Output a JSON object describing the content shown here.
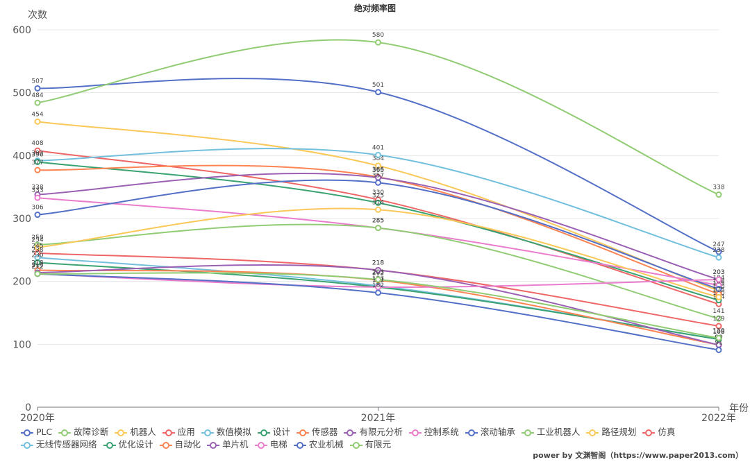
{
  "chart_data": {
    "type": "line",
    "title": "绝对频率图",
    "ylabel": "次数",
    "xlabel": "年份",
    "categories": [
      "2020年",
      "2021年",
      "2022年"
    ],
    "ylim": [
      0,
      600
    ],
    "yticks": [
      0,
      100,
      200,
      300,
      400,
      500,
      600
    ],
    "smooth": true,
    "legend_position": "bottom",
    "series": [
      {
        "name": "PLC",
        "color": "#5470c6",
        "values": [
          507,
          501,
          247
        ]
      },
      {
        "name": "故障诊断",
        "color": "#91cc75",
        "values": [
          484,
          580,
          338
        ]
      },
      {
        "name": "机器人",
        "color": "#fac858",
        "values": [
          454,
          384,
          185
        ]
      },
      {
        "name": "应用",
        "color": "#ee6666",
        "values": [
          408,
          330,
          164
        ]
      },
      {
        "name": "数值模拟",
        "color": "#73c0de",
        "values": [
          392,
          401,
          238
        ]
      },
      {
        "name": "设计",
        "color": "#3ba272",
        "values": [
          390,
          325,
          170
        ]
      },
      {
        "name": "传感器",
        "color": "#fc8452",
        "values": [
          377,
          366,
          180
        ]
      },
      {
        "name": "有限元分析",
        "color": "#9a60b4",
        "values": [
          338,
          365,
          203
        ]
      },
      {
        "name": "控制系统",
        "color": "#ea7ccc",
        "values": [
          333,
          285,
          194
        ]
      },
      {
        "name": "滚动轴承",
        "color": "#5470c6",
        "values": [
          306,
          357,
          188
        ]
      },
      {
        "name": "工业机器人",
        "color": "#91cc75",
        "values": [
          258,
          285,
          141
        ]
      },
      {
        "name": "路径规划",
        "color": "#fac858",
        "values": [
          254,
          314,
          175
        ]
      },
      {
        "name": "仿真",
        "color": "#ee6666",
        "values": [
          245,
          218,
          129
        ]
      },
      {
        "name": "无线传感器网络",
        "color": "#73c0de",
        "values": [
          238,
          193,
          108
        ]
      },
      {
        "name": "优化设计",
        "color": "#3ba272",
        "values": [
          230,
          191,
          108
        ]
      },
      {
        "name": "自动化",
        "color": "#fc8452",
        "values": [
          218,
          202,
          99
        ]
      },
      {
        "name": "单片机",
        "color": "#9a60b4",
        "values": [
          214,
          218,
          99
        ]
      },
      {
        "name": "电梯",
        "color": "#ea7ccc",
        "values": [
          212,
          191,
          203
        ]
      },
      {
        "name": "农业机械",
        "color": "#5470c6",
        "values": [
          212,
          182,
          91
        ]
      },
      {
        "name": "有限元",
        "color": "#91cc75",
        "values": [
          212,
          203,
          110
        ]
      }
    ]
  },
  "footer": {
    "credit": "power by 文渊智阁（https://www.paper2013.com）"
  }
}
